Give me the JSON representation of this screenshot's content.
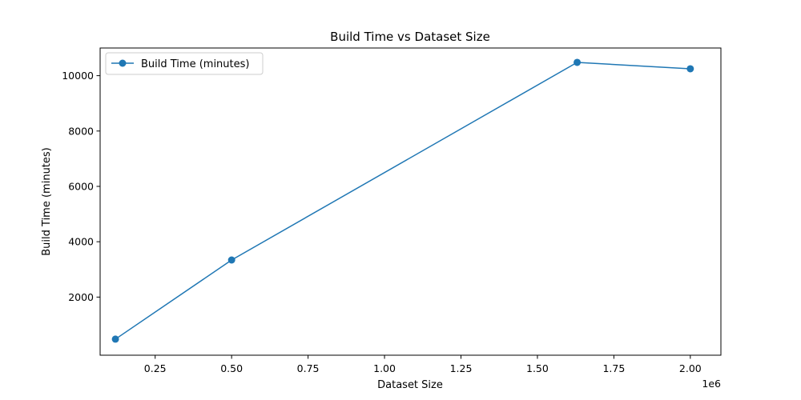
{
  "chart_data": {
    "type": "line",
    "title": "Build Time vs Dataset Size",
    "xlabel": "Dataset Size",
    "ylabel": "Build Time (minutes)",
    "x_scale_label": "1e6",
    "xlim": [
      0.07,
      2.1
    ],
    "ylim": [
      -100,
      11000
    ],
    "x_ticks": [
      {
        "value": 0.25,
        "label": "0.25"
      },
      {
        "value": 0.5,
        "label": "0.50"
      },
      {
        "value": 0.75,
        "label": "0.75"
      },
      {
        "value": 1.0,
        "label": "1.00"
      },
      {
        "value": 1.25,
        "label": "1.25"
      },
      {
        "value": 1.5,
        "label": "1.50"
      },
      {
        "value": 1.75,
        "label": "1.75"
      },
      {
        "value": 2.0,
        "label": "2.00"
      }
    ],
    "y_ticks": [
      {
        "value": 2000,
        "label": "2000"
      },
      {
        "value": 4000,
        "label": "4000"
      },
      {
        "value": 6000,
        "label": "6000"
      },
      {
        "value": 8000,
        "label": "8000"
      },
      {
        "value": 10000,
        "label": "10000"
      }
    ],
    "grid": false,
    "legend": {
      "position": "top-left"
    },
    "series": [
      {
        "name": "Build Time (minutes)",
        "color": "#1f77b4",
        "marker": "circle",
        "points": [
          {
            "x": 0.12,
            "y": 480
          },
          {
            "x": 0.5,
            "y": 3340
          },
          {
            "x": 1.63,
            "y": 10480
          },
          {
            "x": 2.0,
            "y": 10250
          }
        ]
      }
    ]
  }
}
